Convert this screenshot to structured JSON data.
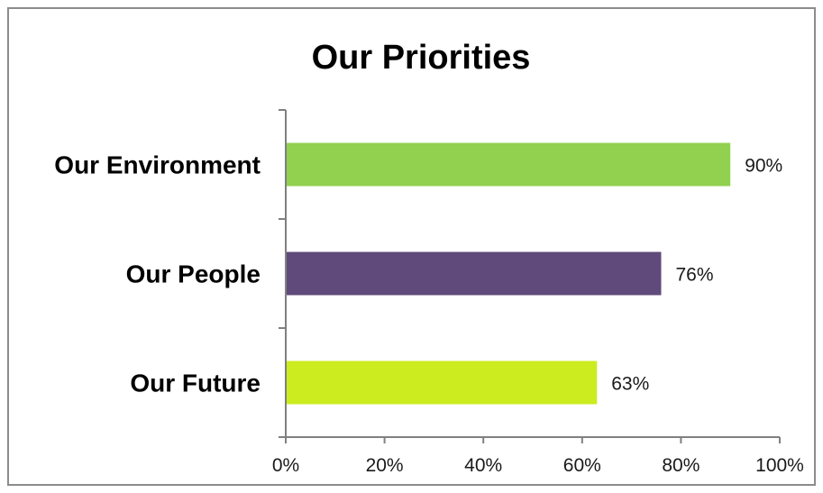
{
  "chart_data": {
    "type": "bar",
    "orientation": "horizontal",
    "title": "Our Priorities",
    "categories": [
      "Our Environment",
      "Our People",
      "Our Future"
    ],
    "values": [
      90,
      76,
      63
    ],
    "value_labels": [
      "90%",
      "76%",
      "63%"
    ],
    "colors": [
      "#92d050",
      "#604a7b",
      "#ccec1f"
    ],
    "xlim": [
      0,
      100
    ],
    "x_ticks": [
      "0%",
      "20%",
      "40%",
      "60%",
      "80%",
      "100%"
    ],
    "axis_color": "#808080",
    "grid": false,
    "legend": "none"
  }
}
